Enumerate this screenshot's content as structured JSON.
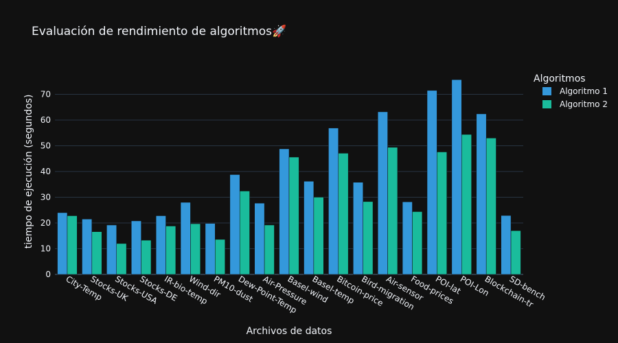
{
  "chart_data": {
    "type": "bar",
    "title": "Evaluación de rendimiento de algoritmos🚀",
    "xlabel": "Archivos de datos",
    "ylabel": "tiempo de ejecución (segundos)",
    "ylim": [
      0,
      80
    ],
    "yticks": [
      0,
      10,
      20,
      30,
      40,
      50,
      60,
      70
    ],
    "grid": true,
    "legend": {
      "title": "Algoritmos",
      "placement": "top-right"
    },
    "categories": [
      "City-Temp",
      "Stocks-UK",
      "Stocks-USA",
      "Stocks-DE",
      "IR-bio-temp",
      "Wind-dir",
      "PM10-dust",
      "Dew-Point-Temp",
      "Air-Pressure",
      "Basel-wind",
      "Basel-temp",
      "Bitcoin-price",
      "Bird-migration",
      "Air-sensor",
      "Food-prices",
      "POI-lat",
      "POI-Lon",
      "Blockchain-tr",
      "SD-bench"
    ],
    "series": [
      {
        "name": "Algoritmo 1",
        "color": "#3498db",
        "values": [
          24,
          21.5,
          19.2,
          20.8,
          22.8,
          28,
          19.8,
          38.8,
          27.7,
          48.8,
          36.2,
          56.9,
          35.8,
          63.2,
          28.2,
          71.5,
          75.7,
          62.4,
          22.9
        ]
      },
      {
        "name": "Algoritmo 2",
        "color": "#1abc9c",
        "values": [
          22.8,
          16.6,
          12,
          13.3,
          18.8,
          19.7,
          13.6,
          32.4,
          19.2,
          45.6,
          30,
          47.1,
          28.3,
          49.4,
          24.4,
          47.6,
          54.4,
          53,
          17
        ]
      }
    ]
  }
}
